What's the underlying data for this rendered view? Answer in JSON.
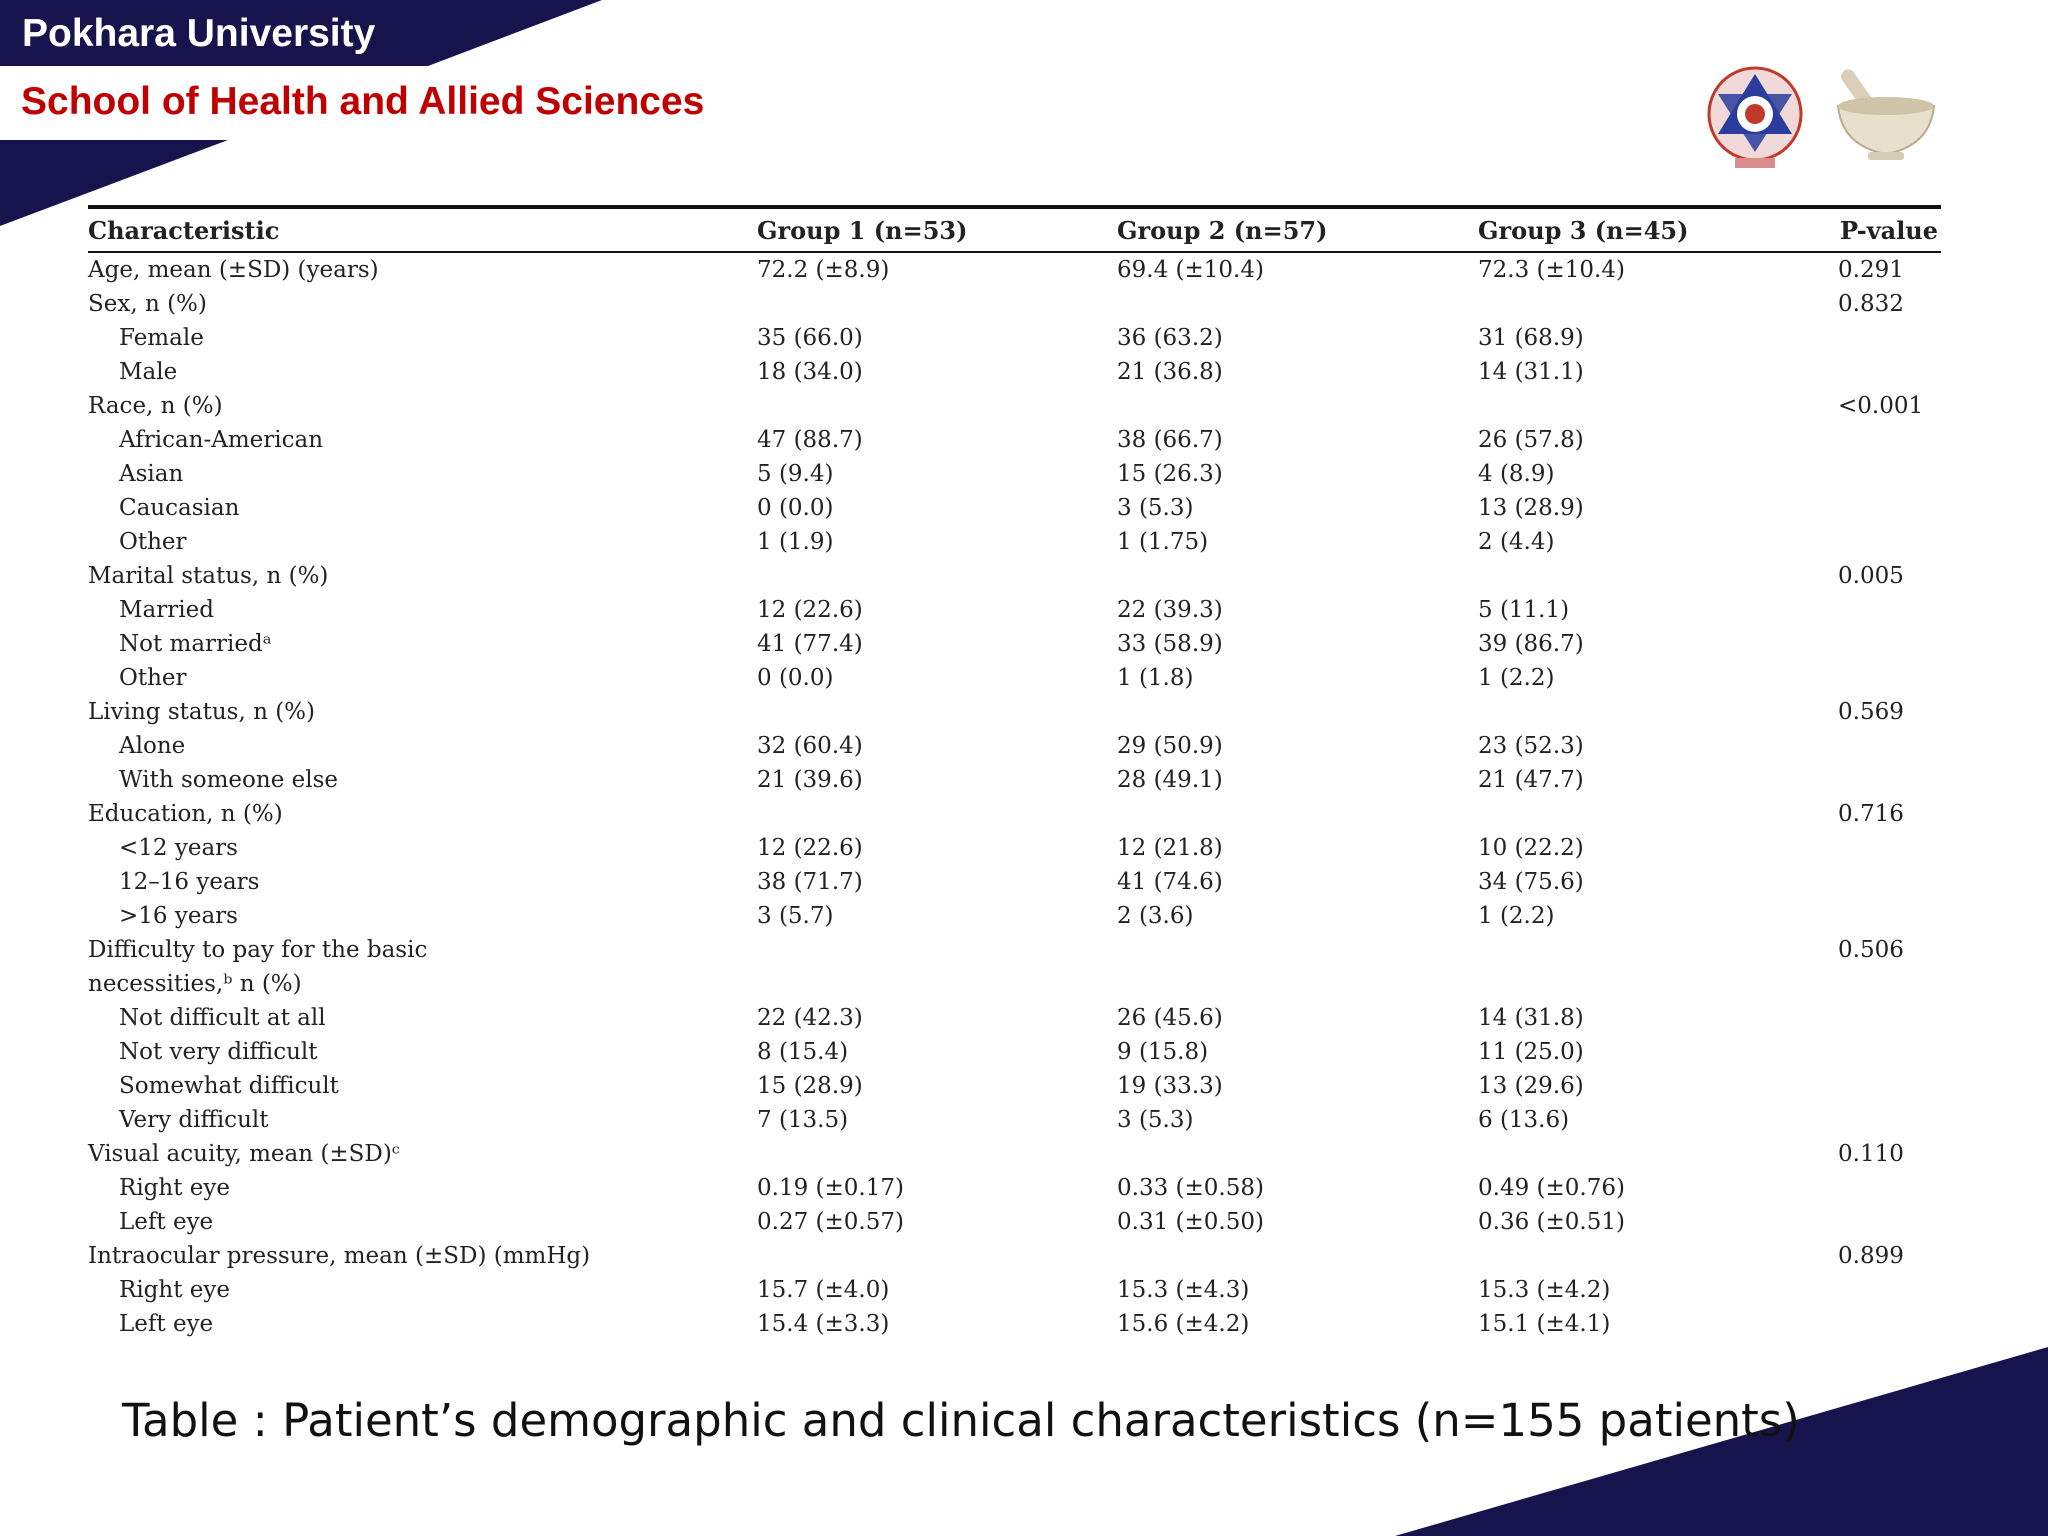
{
  "header": {
    "university": "Pokhara University",
    "school": "School of Health and Allied Sciences"
  },
  "colors": {
    "navy": "#17144d",
    "title_red": "#c00000"
  },
  "logos": [
    "university-emblem-icon",
    "mortar-pestle-icon"
  ],
  "table": {
    "columns": [
      "Characteristic",
      "Group 1 (n=53)",
      "Group 2 (n=57)",
      "Group 3 (n=45)",
      "P-value"
    ],
    "rows": [
      {
        "label": "Age, mean (±SD) (years)",
        "g1": "72.2 (±8.9)",
        "g2": "69.4 (±10.4)",
        "g3": "72.3 (±10.4)",
        "p": "0.291"
      },
      {
        "label": "Sex, n (%)",
        "g1": "",
        "g2": "",
        "g3": "",
        "p": "0.832"
      },
      {
        "label": "Female",
        "g1": "35 (66.0)",
        "g2": "36 (63.2)",
        "g3": "31 (68.9)",
        "p": ""
      },
      {
        "label": "Male",
        "g1": "18 (34.0)",
        "g2": "21 (36.8)",
        "g3": "14 (31.1)",
        "p": ""
      },
      {
        "label": "Race, n (%)",
        "g1": "",
        "g2": "",
        "g3": "",
        "p": "<0.001"
      },
      {
        "label": "African-American",
        "g1": "47 (88.7)",
        "g2": "38 (66.7)",
        "g3": "26 (57.8)",
        "p": ""
      },
      {
        "label": "Asian",
        "g1": "5 (9.4)",
        "g2": "15 (26.3)",
        "g3": "4 (8.9)",
        "p": ""
      },
      {
        "label": "Caucasian",
        "g1": "0 (0.0)",
        "g2": "3 (5.3)",
        "g3": "13 (28.9)",
        "p": ""
      },
      {
        "label": "Other",
        "g1": "1 (1.9)",
        "g2": "1 (1.75)",
        "g3": "2 (4.4)",
        "p": ""
      },
      {
        "label": "Marital status, n (%)",
        "g1": "",
        "g2": "",
        "g3": "",
        "p": "0.005"
      },
      {
        "label": "Married",
        "g1": "12 (22.6)",
        "g2": "22 (39.3)",
        "g3": "5 (11.1)",
        "p": ""
      },
      {
        "label": "Not marriedᵃ",
        "g1": "41 (77.4)",
        "g2": "33 (58.9)",
        "g3": "39 (86.7)",
        "p": ""
      },
      {
        "label": "Other",
        "g1": "0 (0.0)",
        "g2": "1 (1.8)",
        "g3": "1 (2.2)",
        "p": ""
      },
      {
        "label": "Living status, n (%)",
        "g1": "",
        "g2": "",
        "g3": "",
        "p": "0.569"
      },
      {
        "label": "Alone",
        "g1": "32 (60.4)",
        "g2": "29 (50.9)",
        "g3": "23 (52.3)",
        "p": ""
      },
      {
        "label": "With someone else",
        "g1": "21 (39.6)",
        "g2": "28 (49.1)",
        "g3": "21 (47.7)",
        "p": ""
      },
      {
        "label": "Education, n (%)",
        "g1": "",
        "g2": "",
        "g3": "",
        "p": "0.716"
      },
      {
        "label": "<12 years",
        "g1": "12 (22.6)",
        "g2": "12 (21.8)",
        "g3": "10 (22.2)",
        "p": ""
      },
      {
        "label": "12–16 years",
        "g1": "38 (71.7)",
        "g2": "41 (74.6)",
        "g3": "34 (75.6)",
        "p": ""
      },
      {
        "label": ">16 years",
        "g1": "3 (5.7)",
        "g2": "2 (3.6)",
        "g3": "1 (2.2)",
        "p": ""
      },
      {
        "label": "Difficulty to pay for the basic",
        "label2": "necessities,ᵇ n (%)",
        "g1": "",
        "g2": "",
        "g3": "",
        "p": "0.506"
      },
      {
        "label": "Not difficult at all",
        "g1": "22 (42.3)",
        "g2": "26 (45.6)",
        "g3": "14 (31.8)",
        "p": ""
      },
      {
        "label": "Not very difficult",
        "g1": "8 (15.4)",
        "g2": "9 (15.8)",
        "g3": "11 (25.0)",
        "p": ""
      },
      {
        "label": "Somewhat difficult",
        "g1": "15 (28.9)",
        "g2": "19 (33.3)",
        "g3": "13 (29.6)",
        "p": ""
      },
      {
        "label": "Very difficult",
        "g1": "7 (13.5)",
        "g2": "3 (5.3)",
        "g3": "6 (13.6)",
        "p": ""
      },
      {
        "label": "Visual acuity, mean (±SD)ᶜ",
        "g1": "",
        "g2": "",
        "g3": "",
        "p": "0.110"
      },
      {
        "label": "Right eye",
        "g1": "0.19 (±0.17)",
        "g2": "0.33 (±0.58)",
        "g3": "0.49 (±0.76)",
        "p": ""
      },
      {
        "label": "Left eye",
        "g1": "0.27 (±0.57)",
        "g2": "0.31 (±0.50)",
        "g3": "0.36 (±0.51)",
        "p": ""
      },
      {
        "label": "Intraocular pressure, mean (±SD) (mmHg)",
        "g1": "",
        "g2": "",
        "g3": "",
        "p": "0.899"
      },
      {
        "label": "Right eye",
        "g1": "15.7 (±4.0)",
        "g2": "15.3 (±4.3)",
        "g3": "15.3 (±4.2)",
        "p": ""
      },
      {
        "label": "Left eye",
        "g1": "15.4 (±3.3)",
        "g2": "15.6 (±4.2)",
        "g3": "15.1 (±4.1)",
        "p": ""
      }
    ]
  },
  "caption": "Table : Patient’s demographic and clinical characteristics (n=155 patients)"
}
